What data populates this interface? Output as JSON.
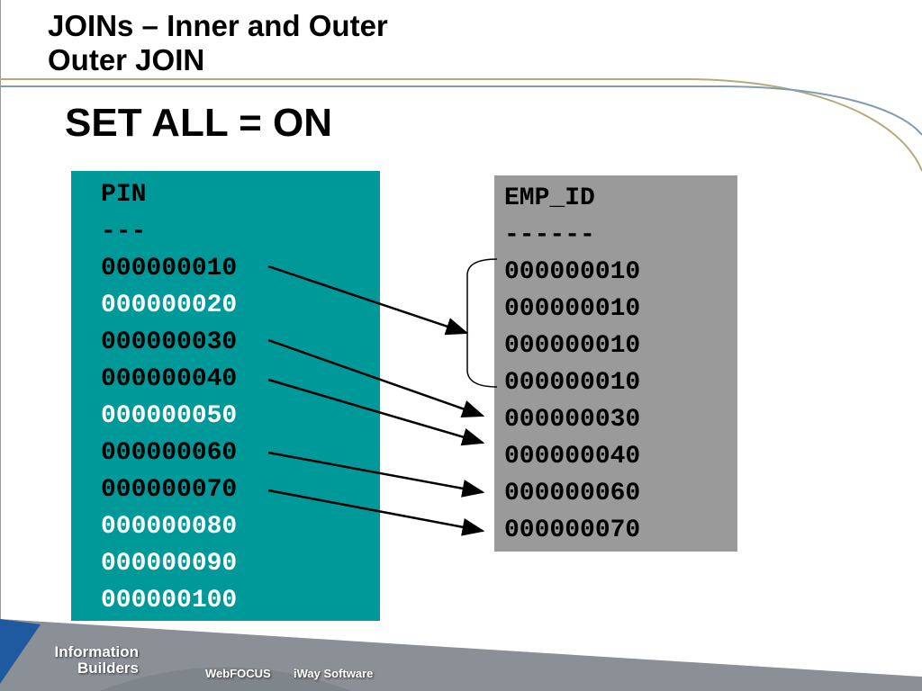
{
  "title": {
    "line1": "JOINs – Inner and Outer",
    "line2": "Outer  JOIN"
  },
  "subtitle": "SET ALL = ON",
  "left_table": {
    "header": "PIN",
    "separator": "---",
    "rows": [
      {
        "v": "000000010",
        "matched": true
      },
      {
        "v": "000000020",
        "matched": false
      },
      {
        "v": "000000030",
        "matched": true
      },
      {
        "v": "000000040",
        "matched": true
      },
      {
        "v": "000000050",
        "matched": false
      },
      {
        "v": "000000060",
        "matched": true
      },
      {
        "v": "000000070",
        "matched": true
      },
      {
        "v": "000000080",
        "matched": false
      },
      {
        "v": "000000090",
        "matched": false
      },
      {
        "v": "000000100",
        "matched": false
      }
    ]
  },
  "right_table": {
    "header": "EMP_ID",
    "separator": "------",
    "rows": [
      "000000010",
      "000000010",
      "000000010",
      "000000010",
      "000000030",
      "000000040",
      "000000060",
      "000000070"
    ]
  },
  "footer": {
    "logo_line1": "Information",
    "logo_line2": "Builders",
    "product1": "WebFOCUS",
    "product2": "iWay Software"
  },
  "colors": {
    "teal": "#009999",
    "gray": "#9a9a9a",
    "footer_gray": "#8a9096",
    "footer_blue": "#1f5aa0"
  }
}
